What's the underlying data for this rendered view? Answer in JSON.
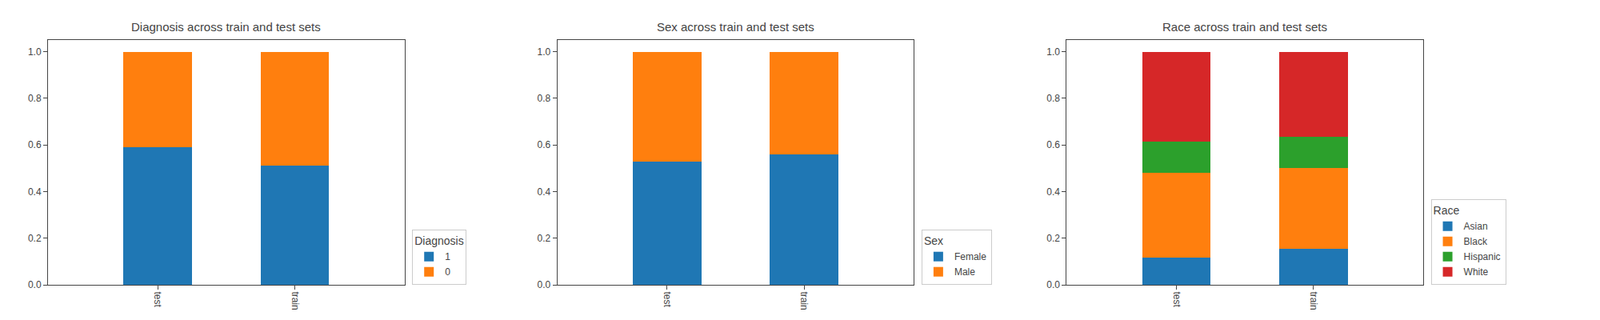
{
  "chart_data": [
    {
      "type": "bar",
      "stacked": true,
      "title": "Diagnosis across train and test sets",
      "categories": [
        "test",
        "train"
      ],
      "legend_title": "Diagnosis",
      "legend": "lower right",
      "grid": false,
      "series": [
        {
          "name": "1",
          "color": "#1f77b4",
          "values": [
            0.59,
            0.51
          ]
        },
        {
          "name": "0",
          "color": "#ff7f0e",
          "values": [
            0.41,
            0.49
          ]
        }
      ],
      "xlim": [
        -0.8,
        1.8
      ],
      "ylim": [
        0.0,
        1.05
      ],
      "yticks": [
        {
          "value": 0.0,
          "label": "0.0"
        },
        0.2,
        0.4,
        0.6,
        0.8,
        {
          "value": 1.0,
          "label": "1.0"
        }
      ]
    },
    {
      "type": "bar",
      "stacked": true,
      "title": "Sex across train and test sets",
      "categories": [
        "test",
        "train"
      ],
      "legend_title": "Sex",
      "legend": "lower right",
      "grid": false,
      "series": [
        {
          "name": "Female",
          "color": "#1f77b4",
          "values": [
            0.53,
            0.56
          ]
        },
        {
          "name": "Male",
          "color": "#ff7f0e",
          "values": [
            0.47,
            0.44
          ]
        }
      ],
      "xlim": [
        -0.8,
        1.8
      ],
      "ylim": [
        0.0,
        1.05
      ],
      "yticks": [
        {
          "value": 0.0,
          "label": "0.0"
        },
        0.2,
        0.4,
        0.6,
        0.8,
        {
          "value": 1.0,
          "label": "1.0"
        }
      ]
    },
    {
      "type": "bar",
      "stacked": true,
      "title": "Race across train and test sets",
      "categories": [
        "test",
        "train"
      ],
      "legend_title": "Race",
      "legend": "lower right",
      "grid": false,
      "series": [
        {
          "name": "Asian",
          "color": "#1f77b4",
          "values": [
            0.115,
            0.155
          ]
        },
        {
          "name": "Black",
          "color": "#ff7f0e",
          "values": [
            0.365,
            0.345
          ]
        },
        {
          "name": "Hispanic",
          "color": "#2ca02c",
          "values": [
            0.135,
            0.135
          ]
        },
        {
          "name": "White",
          "color": "#d62728",
          "values": [
            0.385,
            0.365
          ]
        }
      ],
      "xlim": [
        -0.8,
        1.8
      ],
      "ylim": [
        0.0,
        1.05
      ],
      "yticks": [
        {
          "value": 0.0,
          "label": "0.0"
        },
        0.2,
        0.4,
        0.6,
        0.8,
        {
          "value": 1.0,
          "label": "1.0"
        }
      ]
    }
  ]
}
